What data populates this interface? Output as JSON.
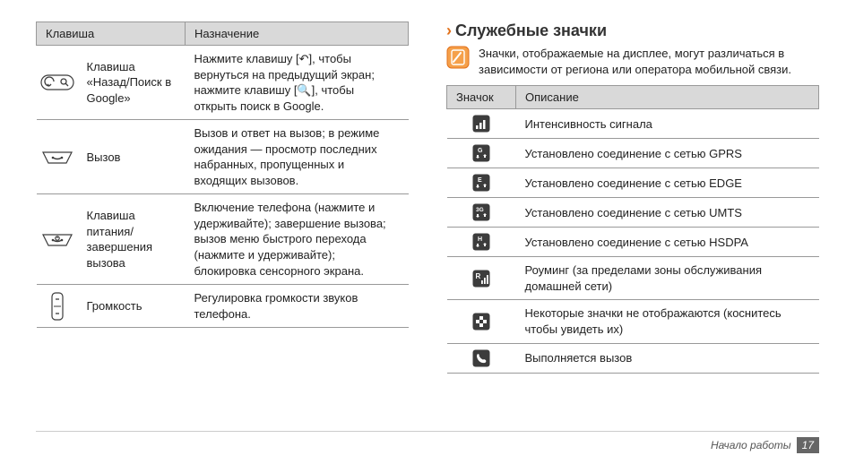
{
  "left_table": {
    "columns": [
      "Клавиша",
      "Назначение"
    ],
    "rows": [
      {
        "key_label": "Клавиша «Назад/Поиск в Google»",
        "desc": "Нажмите клавишу [↶], чтобы вернуться на предыдущий экран; нажмите клавишу [🔍], чтобы открыть поиск в Google.",
        "icon": "back-search-key"
      },
      {
        "key_label": "Вызов",
        "desc": "Вызов и ответ на вызов; в режиме ожидания — просмотр последних набранных, пропущенных и входящих вызовов.",
        "icon": "call-key"
      },
      {
        "key_label": "Клавиша питания/завершения вызова",
        "desc": "Включение телефона (нажмите и удерживайте); завершение вызова; вызов меню быстрого перехода (нажмите и удерживайте); блокировка сенсорного экрана.",
        "icon": "power-key"
      },
      {
        "key_label": "Громкость",
        "desc": "Регулировка громкости звуков телефона.",
        "icon": "volume-key"
      }
    ]
  },
  "right_section": {
    "title": "Служебные значки",
    "note": "Значки, отображаемые на дисплее, могут различаться в зависимости от региона или оператора мобильной связи.",
    "columns": [
      "Значок",
      "Описание"
    ],
    "rows": [
      {
        "icon": "signal-icon",
        "desc": "Интенсивность сигнала"
      },
      {
        "icon": "gprs-icon",
        "desc": "Установлено соединение с сетью GPRS"
      },
      {
        "icon": "edge-icon",
        "desc": "Установлено соединение с сетью EDGE"
      },
      {
        "icon": "umts-icon",
        "desc": "Установлено соединение с сетью UMTS"
      },
      {
        "icon": "hsdpa-icon",
        "desc": "Установлено соединение с сетью HSDPA"
      },
      {
        "icon": "roaming-icon",
        "desc": "Роуминг (за пределами зоны обслуживания домашней сети)"
      },
      {
        "icon": "more-icon",
        "desc": "Некоторые значки не отображаются (коснитесь чтобы увидеть их)"
      },
      {
        "icon": "calling-icon",
        "desc": "Выполняется вызов"
      }
    ]
  },
  "footer": {
    "section": "Начало работы",
    "page": "17"
  },
  "colors": {
    "accent": "#e2701a",
    "header_bg": "#d9d9d9",
    "border": "#999999",
    "icon_dark": "#3c3c3c",
    "icon_light": "#ffffff"
  }
}
